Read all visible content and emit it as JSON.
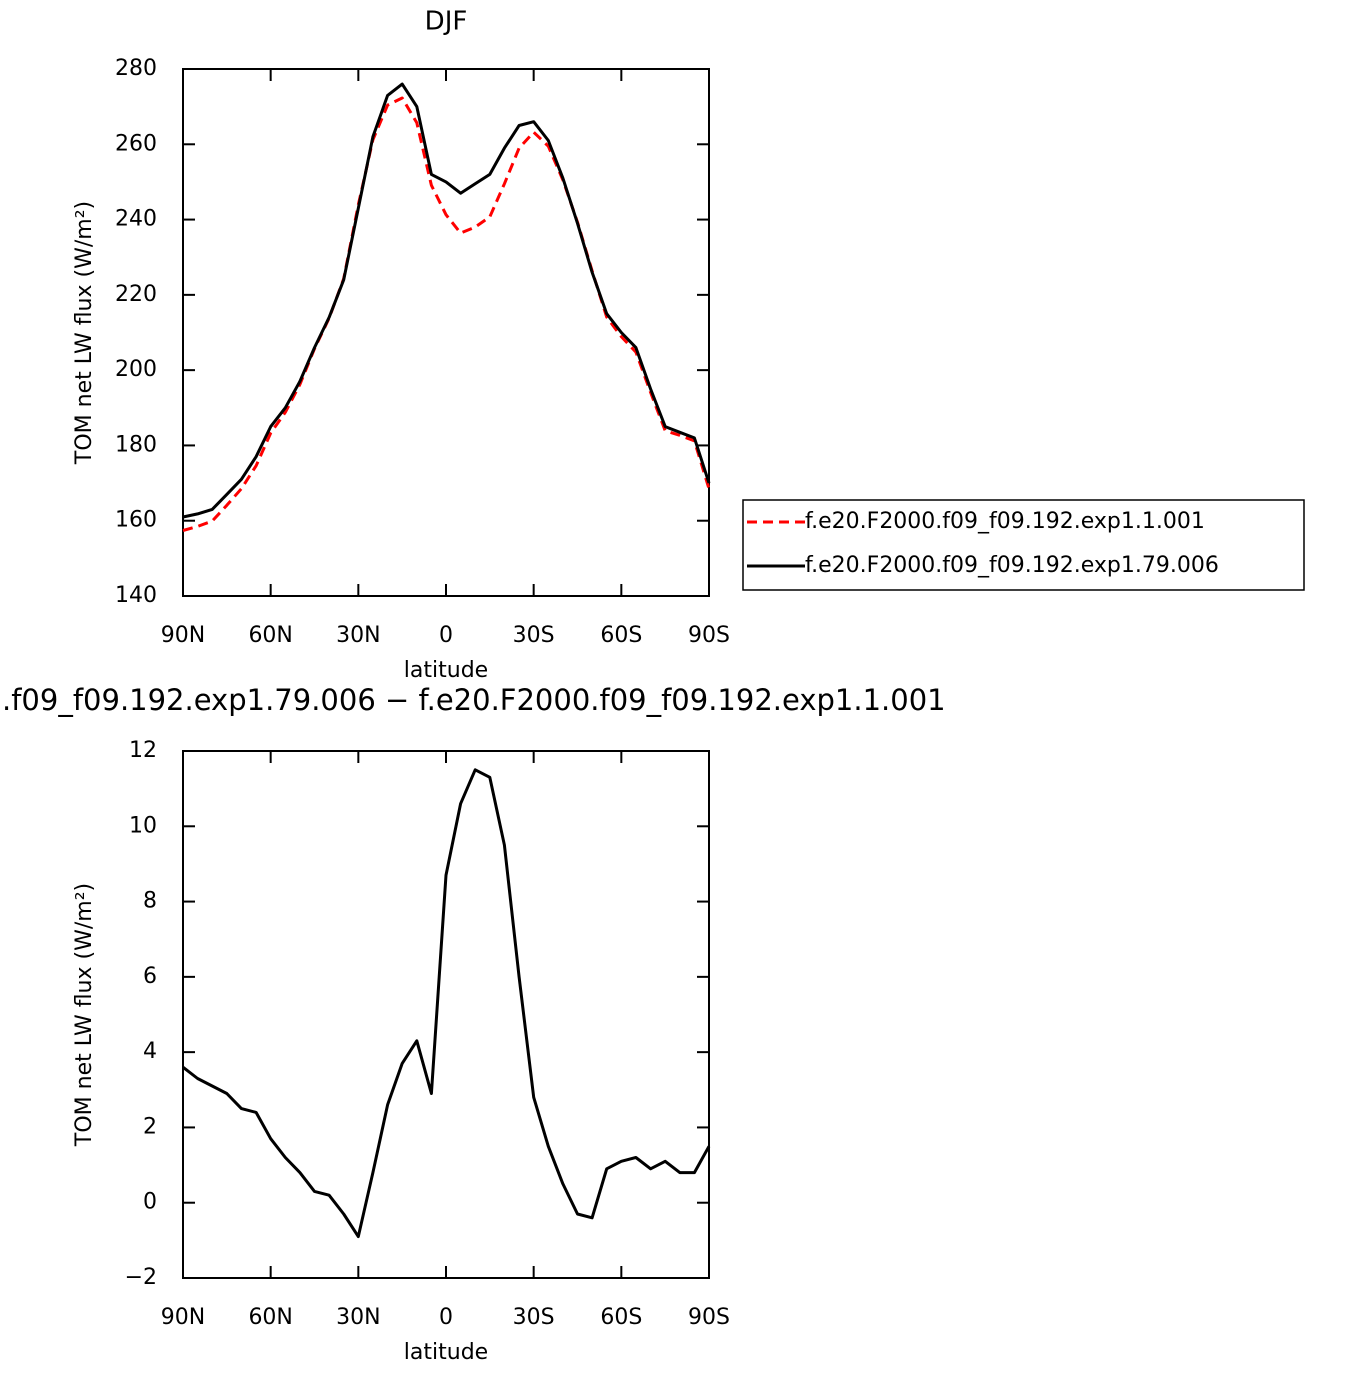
{
  "chart_data": [
    {
      "type": "line",
      "title": "DJF",
      "xlabel": "latitude",
      "ylabel": "TOM net LW flux (W/m²)",
      "x": [
        90,
        85,
        80,
        75,
        70,
        65,
        60,
        55,
        50,
        45,
        40,
        35,
        30,
        25,
        20,
        15,
        10,
        5,
        0,
        -5,
        -10,
        -15,
        -20,
        -25,
        -30,
        -35,
        -40,
        -45,
        -50,
        -55,
        -60,
        -65,
        -70,
        -75,
        -80,
        -85,
        -90
      ],
      "xlim": [
        90,
        -90
      ],
      "xticks": [
        {
          "value": 90,
          "label": "90N"
        },
        {
          "value": 60,
          "label": "60N"
        },
        {
          "value": 30,
          "label": "30N"
        },
        0,
        {
          "value": -30,
          "label": "30S"
        },
        {
          "value": -60,
          "label": "60S"
        },
        {
          "value": -90,
          "label": "90S"
        }
      ],
      "ylim": [
        140,
        280
      ],
      "yticks": [
        140,
        160,
        180,
        200,
        220,
        240,
        260,
        280
      ],
      "legend_position": "right",
      "series": [
        {
          "name": "f.e20.F2000.f09_f09.192.exp1.1.001",
          "color": "#ff0000",
          "linestyle": "dashed",
          "values": [
            157.4,
            158.5,
            159.9,
            164.1,
            168.5,
            174.6,
            183.3,
            188.8,
            196.2,
            205.7,
            213.8,
            224.3,
            243.9,
            261.2,
            270.4,
            272.3,
            265.7,
            249.1,
            241.3,
            236.4,
            238,
            240.7,
            249.5,
            259,
            263.2,
            259.5,
            250.5,
            239.3,
            226.4,
            214.1,
            208.9,
            204.8,
            194.1,
            183.9,
            182.7,
            181.2,
            168.5
          ]
        },
        {
          "name": "f.e20.F2000.f09_f09.192.exp1.79.006",
          "color": "#000000",
          "linestyle": "solid",
          "values": [
            161,
            161.8,
            163,
            167,
            171,
            177,
            185,
            190,
            197,
            206,
            214,
            224,
            243,
            262,
            273,
            276,
            270,
            252,
            250,
            247,
            249.5,
            252,
            259,
            265,
            266,
            261,
            251,
            239,
            226,
            215,
            210,
            206,
            195,
            185,
            183.5,
            182,
            170
          ]
        }
      ]
    },
    {
      "type": "line",
      "title": ".f09_f09.192.exp1.79.006 − f.e20.F2000.f09_f09.192.exp1.1.001",
      "xlabel": "latitude",
      "ylabel": "TOM net LW flux (W/m²)",
      "x": [
        90,
        85,
        80,
        75,
        70,
        65,
        60,
        55,
        50,
        45,
        40,
        35,
        30,
        25,
        20,
        15,
        10,
        5,
        0,
        -5,
        -10,
        -15,
        -20,
        -25,
        -30,
        -35,
        -40,
        -45,
        -50,
        -55,
        -60,
        -65,
        -70,
        -75,
        -80,
        -85,
        -90
      ],
      "xlim": [
        90,
        -90
      ],
      "xticks": [
        {
          "value": 90,
          "label": "90N"
        },
        {
          "value": 60,
          "label": "60N"
        },
        {
          "value": 30,
          "label": "30N"
        },
        0,
        {
          "value": -30,
          "label": "30S"
        },
        {
          "value": -60,
          "label": "60S"
        },
        {
          "value": -90,
          "label": "90S"
        }
      ],
      "ylim": [
        -2,
        12
      ],
      "yticks": [
        {
          "value": -2,
          "label": "−2"
        },
        0,
        2,
        4,
        6,
        8,
        10,
        12
      ],
      "series": [
        {
          "color": "#000000",
          "linestyle": "solid",
          "values": [
            3.6,
            3.3,
            3.1,
            2.9,
            2.5,
            2.4,
            1.7,
            1.2,
            0.8,
            0.3,
            0.2,
            -0.3,
            -0.9,
            0.8,
            2.6,
            3.7,
            4.3,
            2.9,
            8.7,
            10.6,
            11.5,
            11.3,
            9.5,
            6.0,
            2.8,
            1.5,
            0.5,
            -0.3,
            -0.4,
            0.9,
            1.1,
            1.2,
            0.9,
            1.1,
            0.8,
            0.8,
            1.5
          ]
        }
      ]
    }
  ]
}
